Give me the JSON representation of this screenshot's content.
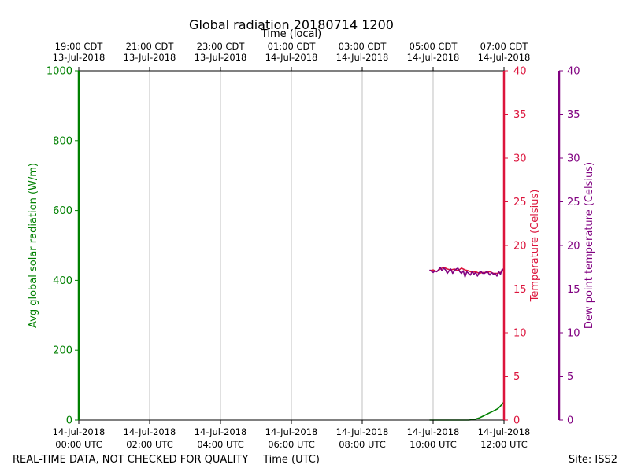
{
  "chart_data": {
    "type": "line",
    "title": "Global radiation 20180714 1200",
    "top_axis_label": "Time (local)",
    "xlabel": "Time (UTC)",
    "ylabel_left": "Avg global solar radiation (W/m)",
    "ylabel_right_temp": "Temperature (Celsius)",
    "ylabel_right_dew": "Dew point temperature (Celsius)",
    "footer_left": "REAL-TIME DATA, NOT CHECKED FOR QUALITY",
    "footer_right": "Site: ISS2",
    "x_range_hours_utc": [
      0,
      12
    ],
    "x_ticks_utc": [
      {
        "h": 0,
        "line1": "14-Jul-2018",
        "line2": "00:00 UTC"
      },
      {
        "h": 2,
        "line1": "14-Jul-2018",
        "line2": "02:00 UTC"
      },
      {
        "h": 4,
        "line1": "14-Jul-2018",
        "line2": "04:00 UTC"
      },
      {
        "h": 6,
        "line1": "14-Jul-2018",
        "line2": "06:00 UTC"
      },
      {
        "h": 8,
        "line1": "14-Jul-2018",
        "line2": "08:00 UTC"
      },
      {
        "h": 10,
        "line1": "14-Jul-2018",
        "line2": "10:00 UTC"
      },
      {
        "h": 12,
        "line1": "14-Jul-2018",
        "line2": "12:00 UTC"
      }
    ],
    "x_ticks_local": [
      {
        "h": 0,
        "line1": "19:00 CDT",
        "line2": "13-Jul-2018"
      },
      {
        "h": 2,
        "line1": "21:00 CDT",
        "line2": "13-Jul-2018"
      },
      {
        "h": 4,
        "line1": "23:00 CDT",
        "line2": "13-Jul-2018"
      },
      {
        "h": 6,
        "line1": "01:00 CDT",
        "line2": "14-Jul-2018"
      },
      {
        "h": 8,
        "line1": "03:00 CDT",
        "line2": "14-Jul-2018"
      },
      {
        "h": 10,
        "line1": "05:00 CDT",
        "line2": "14-Jul-2018"
      },
      {
        "h": 12,
        "line1": "07:00 CDT",
        "line2": "14-Jul-2018"
      }
    ],
    "y_left": {
      "range": [
        0,
        1000
      ],
      "ticks": [
        0,
        200,
        400,
        600,
        800,
        1000
      ]
    },
    "y_right_temp": {
      "range": [
        0,
        40
      ],
      "ticks": [
        0,
        5,
        10,
        15,
        20,
        25,
        30,
        35,
        40
      ]
    },
    "y_right_dew": {
      "range": [
        0,
        40
      ],
      "ticks": [
        0,
        5,
        10,
        15,
        20,
        25,
        30,
        35,
        40
      ]
    },
    "grid_vertical": true,
    "colors": {
      "radiation": "#008000",
      "temperature": "#dc143c",
      "dewpoint": "#800080",
      "grid": "#b0b0b0",
      "axis": "#000000"
    },
    "series": [
      {
        "key": "radiation",
        "axis": "left",
        "x": [
          9.9,
          10.2,
          10.5,
          10.8,
          11.0,
          11.1,
          11.2,
          11.3,
          11.4,
          11.5,
          11.6,
          11.7,
          11.8,
          11.85,
          11.9,
          11.95,
          12.0
        ],
        "y": [
          0,
          0,
          0,
          0,
          0,
          1,
          3,
          6,
          11,
          16,
          21,
          26,
          31,
          35,
          40,
          46,
          52
        ]
      },
      {
        "key": "temperature",
        "axis": "right_temp",
        "x": [
          9.9,
          10.0,
          10.1,
          10.2,
          10.3,
          10.4,
          10.5,
          10.6,
          10.7,
          10.8,
          10.9,
          11.0,
          11.1,
          11.2,
          11.3,
          11.4,
          11.5,
          11.6,
          11.7,
          11.8,
          11.9,
          12.0
        ],
        "y": [
          17.1,
          17.2,
          17.0,
          17.3,
          17.5,
          17.3,
          17.2,
          17.3,
          17.1,
          17.4,
          17.2,
          17.1,
          16.9,
          17.0,
          16.8,
          16.9,
          16.9,
          17.0,
          16.8,
          16.8,
          16.9,
          17.2
        ]
      },
      {
        "key": "dewpoint",
        "axis": "right_dew",
        "x": [
          9.9,
          10.0,
          10.05,
          10.1,
          10.15,
          10.2,
          10.25,
          10.3,
          10.35,
          10.4,
          10.45,
          10.5,
          10.55,
          10.6,
          10.65,
          10.7,
          10.75,
          10.8,
          10.85,
          10.9,
          10.95,
          11.0,
          11.05,
          11.1,
          11.15,
          11.2,
          11.25,
          11.3,
          11.35,
          11.4,
          11.45,
          11.5,
          11.55,
          11.6,
          11.65,
          11.7,
          11.75,
          11.8,
          11.85,
          11.9,
          11.95,
          12.0
        ],
        "y": [
          17.2,
          16.9,
          17.1,
          17.0,
          17.2,
          17.5,
          17.1,
          17.4,
          17.2,
          16.8,
          17.1,
          17.3,
          16.8,
          17.1,
          17.3,
          17.4,
          17.0,
          16.8,
          17.1,
          16.4,
          17.0,
          16.8,
          16.6,
          17.0,
          16.7,
          16.9,
          16.5,
          16.9,
          17.0,
          16.8,
          16.8,
          17.0,
          16.9,
          16.6,
          16.9,
          16.7,
          16.8,
          16.5,
          17.0,
          16.7,
          17.3,
          17.0
        ]
      }
    ]
  }
}
